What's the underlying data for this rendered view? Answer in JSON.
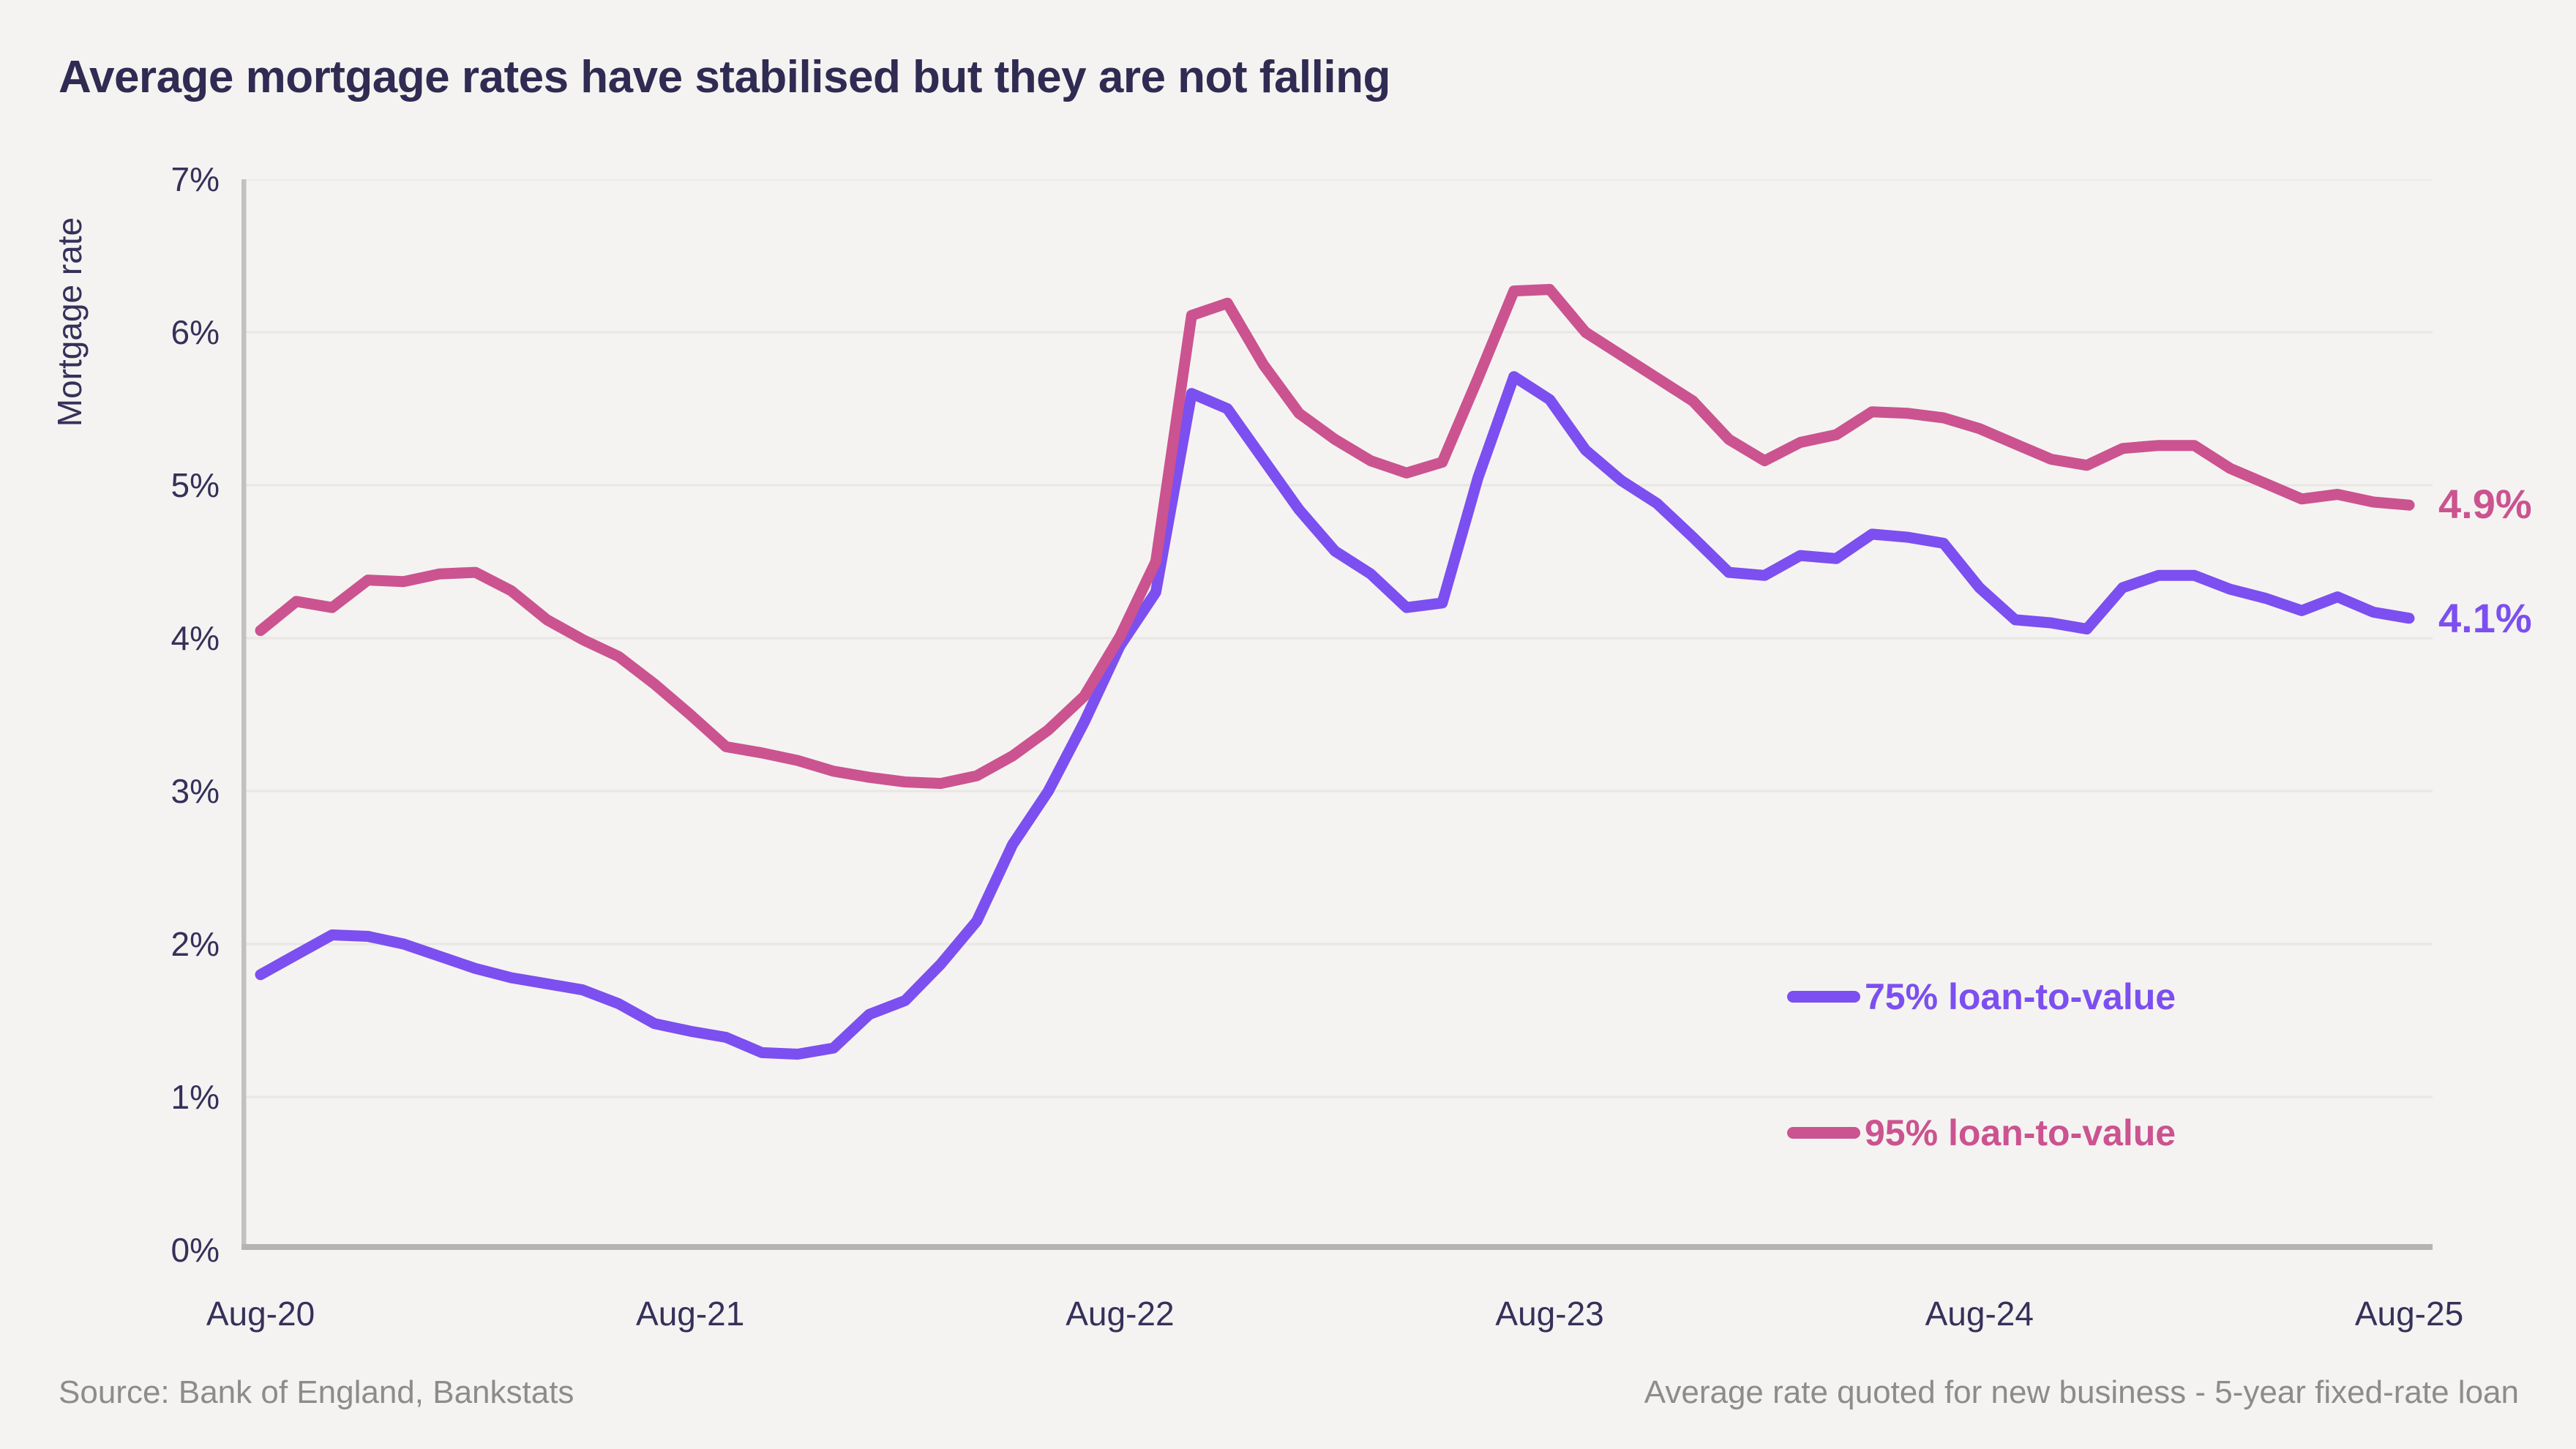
{
  "title": "Average mortgage rates have stabilised but they are not falling",
  "footer": {
    "source": "Source: Bank of England, Bankstats",
    "note": "Average rate quoted for new business - 5-year fixed-rate loan"
  },
  "colors": {
    "background": "#f5f3f1",
    "title_text": "#2f2b52",
    "tick_text": "#35315a",
    "gridline": "#e9e7e4",
    "y_axis_line": "#c3c1bf",
    "x_axis_line": "#b6b4b2",
    "footer_text": "#8e8c8b",
    "series_75_ltv": "#7c4ff0",
    "series_95_ltv": "#cb5390"
  },
  "chart_data": {
    "type": "line",
    "title": "Average mortgage rates have stabilised but they are not falling",
    "xlabel": "",
    "ylabel": "Mortgage rate",
    "ylim": [
      0,
      7
    ],
    "y_tick_labels": [
      "0%",
      "1%",
      "2%",
      "3%",
      "4%",
      "5%",
      "6%",
      "7%"
    ],
    "x_tick_labels": [
      "Aug-20",
      "Aug-21",
      "Aug-22",
      "Aug-23",
      "Aug-24",
      "Aug-25"
    ],
    "x_unit": "month",
    "x_range_months": 60,
    "grid": true,
    "legend_position": "inside bottom-right",
    "series": [
      {
        "name": "75% loan-to-value",
        "color": "#7c4ff0",
        "end_label": "4.1%",
        "values": [
          1.8,
          1.93,
          2.06,
          2.05,
          2.0,
          1.92,
          1.84,
          1.78,
          1.74,
          1.7,
          1.61,
          1.48,
          1.43,
          1.39,
          1.29,
          1.28,
          1.32,
          1.54,
          1.63,
          1.87,
          2.15,
          2.65,
          3.0,
          3.45,
          3.95,
          4.3,
          5.6,
          5.5,
          5.17,
          4.84,
          4.57,
          4.42,
          4.2,
          4.23,
          5.05,
          5.71,
          5.56,
          5.23,
          5.03,
          4.88,
          4.66,
          4.43,
          4.41,
          4.54,
          4.52,
          4.68,
          4.66,
          4.62,
          4.33,
          4.12,
          4.1,
          4.06,
          4.33,
          4.41,
          4.41,
          4.32,
          4.26,
          4.18,
          4.27,
          4.17,
          4.13
        ]
      },
      {
        "name": "95% loan-to-value",
        "color": "#cb5390",
        "end_label": "4.9%",
        "values": [
          4.05,
          4.24,
          4.2,
          4.38,
          4.37,
          4.42,
          4.43,
          4.31,
          4.12,
          3.99,
          3.88,
          3.7,
          3.5,
          3.29,
          3.25,
          3.2,
          3.13,
          3.09,
          3.06,
          3.05,
          3.1,
          3.23,
          3.4,
          3.62,
          4.01,
          4.5,
          6.11,
          6.19,
          5.79,
          5.47,
          5.3,
          5.16,
          5.08,
          5.15,
          5.7,
          6.27,
          6.28,
          6.0,
          5.85,
          5.7,
          5.55,
          5.3,
          5.16,
          5.28,
          5.33,
          5.48,
          5.47,
          5.44,
          5.37,
          5.27,
          5.17,
          5.13,
          5.24,
          5.26,
          5.26,
          5.11,
          5.01,
          4.91,
          4.94,
          4.89,
          4.87
        ]
      }
    ]
  }
}
